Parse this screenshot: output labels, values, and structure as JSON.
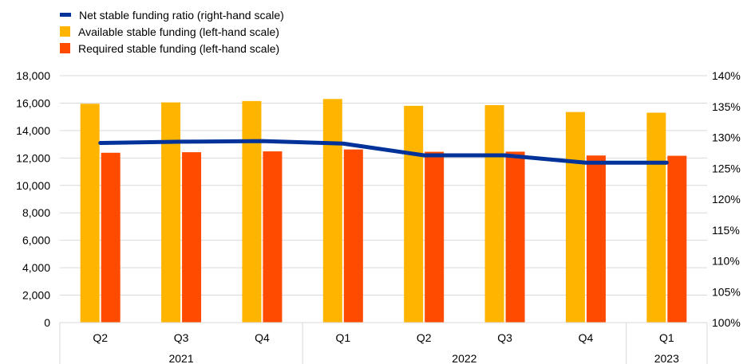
{
  "chart_data": {
    "type": "bar",
    "categories": [
      "Q2",
      "Q3",
      "Q4",
      "Q1",
      "Q2",
      "Q3",
      "Q4",
      "Q1"
    ],
    "year_groups": [
      {
        "label": "2021",
        "count": 3
      },
      {
        "label": "2022",
        "count": 4
      },
      {
        "label": "2023",
        "count": 1
      }
    ],
    "series": [
      {
        "name": "Available stable funding (left-hand scale)",
        "kind": "bar",
        "axis": "left",
        "color": "#FFB400",
        "values": [
          15950,
          16050,
          16150,
          16300,
          15800,
          15850,
          15350,
          15300
        ]
      },
      {
        "name": "Required stable funding (left-hand scale)",
        "kind": "bar",
        "axis": "left",
        "color": "#FF4B00",
        "values": [
          12380,
          12420,
          12480,
          12620,
          12450,
          12460,
          12180,
          12160
        ]
      },
      {
        "name": "Net stable funding ratio (right-hand scale)",
        "kind": "line",
        "axis": "right",
        "color": "#003299",
        "values": [
          129.1,
          129.3,
          129.4,
          129.0,
          127.1,
          127.1,
          125.9,
          125.9
        ]
      }
    ],
    "y_left": {
      "min": 0,
      "max": 18000,
      "step": 2000,
      "tick_labels": [
        "0",
        "2,000",
        "4,000",
        "6,000",
        "8,000",
        "10,000",
        "12,000",
        "14,000",
        "16,000",
        "18,000"
      ]
    },
    "y_right": {
      "min": 100,
      "max": 140,
      "step": 5,
      "tick_labels": [
        "100%",
        "105%",
        "110%",
        "115%",
        "120%",
        "125%",
        "130%",
        "135%",
        "140%"
      ]
    },
    "grid": true,
    "legend_position": "top-left"
  }
}
